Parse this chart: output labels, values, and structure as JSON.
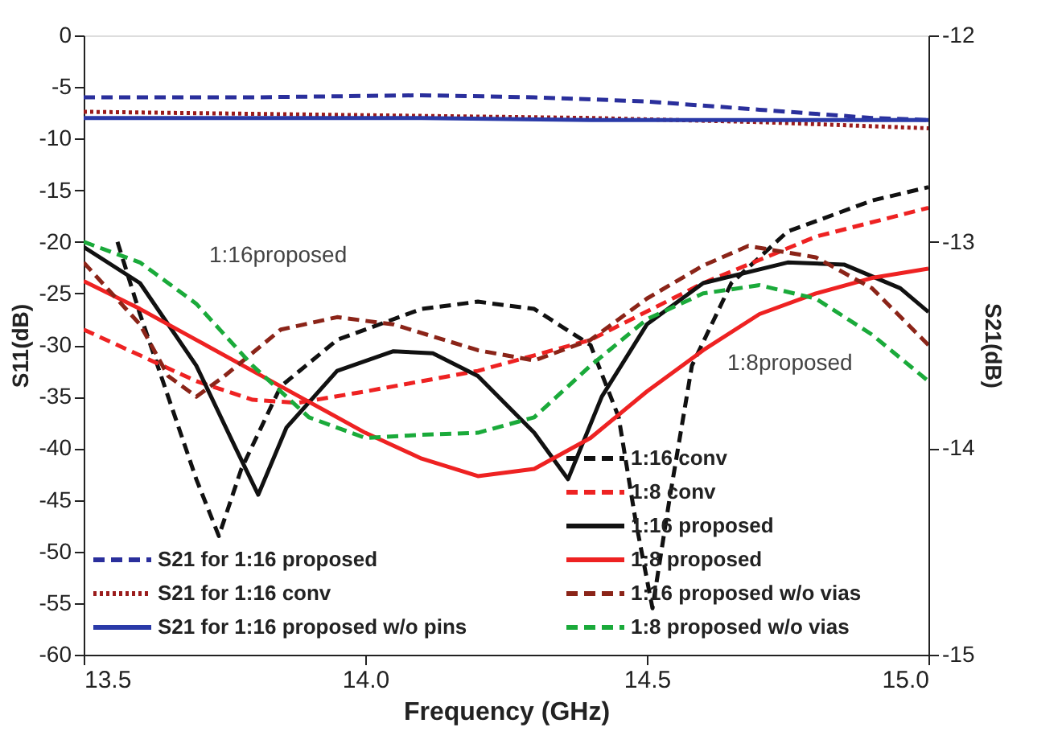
{
  "chart_data": {
    "type": "line",
    "xlabel": "Frequency (GHz)",
    "ylabel": "S11(dB)",
    "y2label": "S21(dB)",
    "xlim": [
      13.5,
      15.0
    ],
    "xticks": [
      13.5,
      {
        "value": 14.0,
        "label": "14.0"
      },
      14.5,
      {
        "value": 15.0,
        "label": "15.0"
      }
    ],
    "ylim": [
      -60,
      0
    ],
    "yticks": [
      0,
      -5,
      -10,
      -15,
      -20,
      -25,
      -30,
      -35,
      -40,
      -45,
      -50,
      -55,
      -60
    ],
    "y2lim": [
      -15,
      -12
    ],
    "y2ticks": [
      -12,
      -13,
      -14,
      -15
    ],
    "grid": false,
    "legend": "bottom",
    "annotations": [
      "1:16proposed",
      "1:8proposed"
    ],
    "series": [
      {
        "name": "S21 for 1:16 proposed",
        "color": "#2a2f9c",
        "line_style": "dashed",
        "axis": "y2",
        "x": [
          13.5,
          13.8,
          14.1,
          14.3,
          14.5,
          14.7,
          14.9,
          15.0
        ],
        "values": [
          -12.3,
          -12.3,
          -12.29,
          -12.3,
          -12.32,
          -12.36,
          -12.4,
          -12.41
        ]
      },
      {
        "name": "S21 for 1:16 conv",
        "color": "#9b1c1c",
        "line_style": "dotted",
        "axis": "y2",
        "x": [
          13.5,
          13.8,
          14.1,
          14.4,
          14.7,
          15.0
        ],
        "values": [
          -12.37,
          -12.38,
          -12.39,
          -12.4,
          -12.42,
          -12.45
        ]
      },
      {
        "name": "S21 for 1:16 proposed w/o pins",
        "color": "#2a3aa8",
        "line_style": "solid",
        "axis": "y2",
        "x": [
          13.5,
          13.8,
          14.1,
          14.4,
          14.7,
          15.0
        ],
        "values": [
          -12.4,
          -12.4,
          -12.4,
          -12.41,
          -12.41,
          -12.41
        ]
      },
      {
        "name": "1:16 conv",
        "color": "#111111",
        "line_style": "dashed",
        "x": [
          13.56,
          13.6,
          13.65,
          13.7,
          13.74,
          13.78,
          13.85,
          13.95,
          14.1,
          14.2,
          14.3,
          14.4,
          14.45,
          14.48,
          14.51,
          14.54,
          14.58,
          14.65,
          14.75,
          14.9,
          15.0
        ],
        "values": [
          -20,
          -27,
          -35,
          -43,
          -48.5,
          -42,
          -34,
          -29.5,
          -26.5,
          -25.8,
          -26.5,
          -30,
          -37,
          -47,
          -55.5,
          -45,
          -32,
          -24,
          -19,
          -16,
          -14.7
        ]
      },
      {
        "name": "1:8 conv",
        "color": "#ee2222",
        "line_style": "dashed",
        "x": [
          13.5,
          13.6,
          13.7,
          13.8,
          13.88,
          14.0,
          14.2,
          14.4,
          14.6,
          14.8,
          15.0
        ],
        "values": [
          -28.5,
          -31,
          -33.5,
          -35.3,
          -35.6,
          -34.5,
          -32.5,
          -29.5,
          -24,
          -19.5,
          -16.7
        ]
      },
      {
        "name": "1:16 proposed",
        "color": "#111111",
        "line_style": "solid",
        "x": [
          13.5,
          13.6,
          13.7,
          13.77,
          13.81,
          13.86,
          13.95,
          14.05,
          14.12,
          14.2,
          14.3,
          14.36,
          14.42,
          14.5,
          14.6,
          14.75,
          14.85,
          14.95,
          15.0
        ],
        "values": [
          -20.5,
          -24,
          -32,
          -40,
          -44.5,
          -38,
          -32.5,
          -30.6,
          -30.8,
          -33,
          -38.5,
          -43,
          -35,
          -28,
          -24,
          -22,
          -22.2,
          -24.5,
          -26.8
        ]
      },
      {
        "name": "1:8 proposed",
        "color": "#ee2222",
        "line_style": "solid",
        "x": [
          13.5,
          13.6,
          13.7,
          13.8,
          13.9,
          14.0,
          14.1,
          14.2,
          14.3,
          14.4,
          14.5,
          14.6,
          14.7,
          14.8,
          14.9,
          15.0
        ],
        "values": [
          -23.8,
          -26.5,
          -29.5,
          -32.5,
          -35.5,
          -38.5,
          -41,
          -42.7,
          -42,
          -39,
          -34.5,
          -30.5,
          -27,
          -25,
          -23.5,
          -22.6
        ]
      },
      {
        "name": "1:16 proposed w/o vias",
        "color": "#8b2418",
        "line_style": "dashed",
        "x": [
          13.5,
          13.6,
          13.65,
          13.7,
          13.75,
          13.85,
          13.95,
          14.05,
          14.2,
          14.3,
          14.4,
          14.5,
          14.6,
          14.68,
          14.8,
          14.9,
          15.0
        ],
        "values": [
          -22,
          -28,
          -33,
          -35,
          -33,
          -28.5,
          -27.3,
          -28,
          -30.5,
          -31.5,
          -29.5,
          -25.5,
          -22.3,
          -20.4,
          -21.5,
          -24.5,
          -30
        ]
      },
      {
        "name": "1:8 proposed w/o vias",
        "color": "#1aaa3a",
        "line_style": "dashed",
        "x": [
          13.5,
          13.6,
          13.7,
          13.8,
          13.9,
          14.0,
          14.1,
          14.2,
          14.3,
          14.4,
          14.5,
          14.6,
          14.7,
          14.8,
          14.9,
          15.0
        ],
        "values": [
          -20,
          -22,
          -26,
          -32,
          -37,
          -39,
          -38.7,
          -38.5,
          -37,
          -32,
          -27.5,
          -25,
          -24.2,
          -25.5,
          -29,
          -33.5
        ]
      }
    ]
  }
}
